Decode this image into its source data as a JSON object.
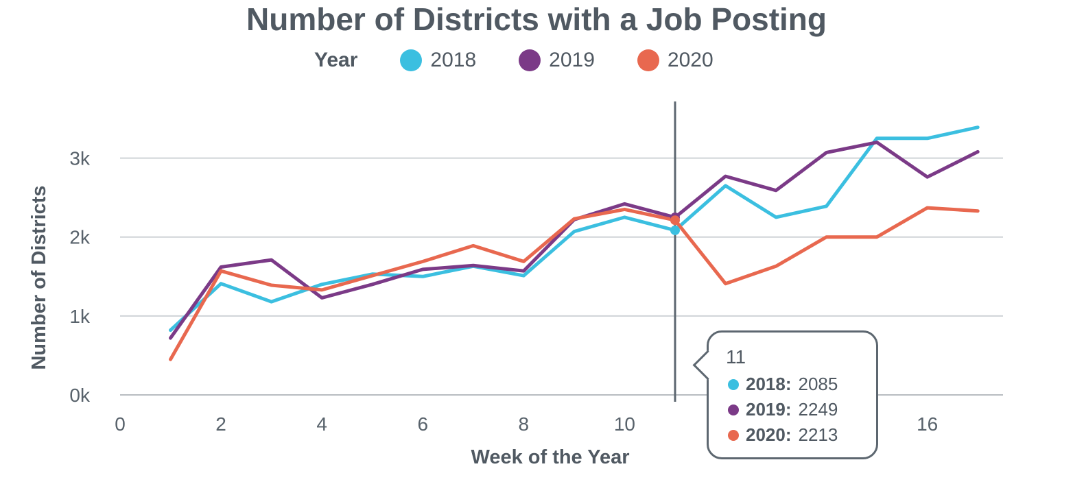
{
  "title": "Number of Districts with a Job Posting",
  "legend": {
    "title": "Year",
    "items": [
      {
        "label": "2018",
        "color": "#3bbfe0"
      },
      {
        "label": "2019",
        "color": "#7b3a87"
      },
      {
        "label": "2020",
        "color": "#e8684f"
      }
    ]
  },
  "tooltip": {
    "week": "11",
    "rows": [
      {
        "name": "2018:",
        "value": "2085",
        "color": "#3bbfe0"
      },
      {
        "name": "2019:",
        "value": "2249",
        "color": "#7b3a87"
      },
      {
        "name": "2020:",
        "value": "2213",
        "color": "#e8684f"
      }
    ]
  },
  "chart_data": {
    "type": "line",
    "title": "Number of Districts with a Job Posting",
    "xlabel": "Week of the Year",
    "ylabel": "Number of Districts",
    "xlim": [
      0,
      17.5
    ],
    "ylim": [
      0,
      3700
    ],
    "x_ticks": [
      0,
      2,
      4,
      6,
      8,
      10,
      16
    ],
    "x_tick_labels": [
      "0",
      "2",
      "4",
      "6",
      "8",
      "10",
      "16"
    ],
    "y_ticks": [
      0,
      1000,
      2000,
      3000
    ],
    "y_tick_labels": [
      "0k",
      "1k",
      "2k",
      "3k"
    ],
    "grid": "horizontal",
    "legend_position": "top",
    "hover_x": 11,
    "x": [
      1,
      2,
      3,
      4,
      5,
      6,
      7,
      8,
      9,
      10,
      11,
      12,
      13,
      14,
      15,
      16,
      17
    ],
    "series": [
      {
        "name": "2018",
        "color": "#3bbfe0",
        "values": [
          820,
          1410,
          1180,
          1400,
          1530,
          1500,
          1630,
          1510,
          2070,
          2250,
          2085,
          2650,
          2250,
          2390,
          3250,
          3250,
          3390
        ]
      },
      {
        "name": "2019",
        "color": "#7b3a87",
        "values": [
          720,
          1620,
          1710,
          1230,
          1400,
          1590,
          1640,
          1570,
          2220,
          2420,
          2249,
          2770,
          2590,
          3070,
          3200,
          2760,
          3080
        ]
      },
      {
        "name": "2020",
        "color": "#e8684f",
        "values": [
          450,
          1570,
          1390,
          1330,
          1510,
          1690,
          1890,
          1690,
          2230,
          2350,
          2213,
          1410,
          1630,
          2000,
          2000,
          2370,
          2330
        ]
      }
    ]
  }
}
